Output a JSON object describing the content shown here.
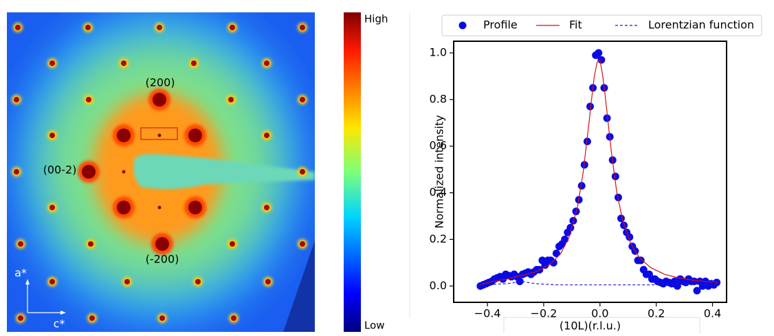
{
  "image": {
    "peak_labels": [
      "(200)",
      "(00-2)",
      "(-200)"
    ],
    "axes": [
      "a*",
      "c*"
    ],
    "colorbar": {
      "high": "High",
      "low": "Low"
    }
  },
  "chart_data": {
    "type": "line",
    "xlabel": "(10L)(r.l.u.)",
    "ylabel": "Normalized intensity",
    "xlim": [
      -0.52,
      0.45
    ],
    "ylim": [
      -0.07,
      1.05
    ],
    "xticks": [
      {
        "value": -0.4,
        "label": "−0.4"
      },
      {
        "value": -0.2,
        "label": "−0.2"
      },
      {
        "value": 0,
        "label": "0.0"
      },
      0.2,
      0.4
    ],
    "yticks": [
      {
        "value": 0,
        "label": "0.0"
      },
      0.2,
      0.4,
      0.6,
      0.8,
      {
        "value": 1,
        "label": "1.0"
      }
    ],
    "legend": "upper center",
    "series": [
      {
        "name": "Profile",
        "type": "scatter",
        "color": "#0a0ae6",
        "x": [
          -0.425,
          -0.415,
          -0.405,
          -0.395,
          -0.385,
          -0.375,
          -0.365,
          -0.355,
          -0.345,
          -0.335,
          -0.325,
          -0.315,
          -0.305,
          -0.295,
          -0.285,
          -0.275,
          -0.265,
          -0.255,
          -0.245,
          -0.235,
          -0.225,
          -0.215,
          -0.205,
          -0.195,
          -0.185,
          -0.175,
          -0.165,
          -0.155,
          -0.145,
          -0.135,
          -0.125,
          -0.115,
          -0.105,
          -0.095,
          -0.085,
          -0.075,
          -0.065,
          -0.055,
          -0.045,
          -0.035,
          -0.025,
          -0.015,
          -0.005,
          0.005,
          0.015,
          0.025,
          0.035,
          0.045,
          0.055,
          0.065,
          0.075,
          0.085,
          0.095,
          0.105,
          0.115,
          0.125,
          0.135,
          0.145,
          0.155,
          0.165,
          0.175,
          0.185,
          0.195,
          0.205,
          0.215,
          0.225,
          0.235,
          0.245,
          0.255,
          0.265,
          0.275,
          0.285,
          0.295,
          0.305,
          0.315,
          0.325,
          0.335,
          0.345,
          0.355,
          0.365,
          0.375,
          0.385,
          0.395,
          0.405,
          0.415
        ],
        "values": [
          0.0,
          0.005,
          0.01,
          0.015,
          0.02,
          0.03,
          0.035,
          0.04,
          0.03,
          0.05,
          0.045,
          0.04,
          0.05,
          0.04,
          0.02,
          0.05,
          0.055,
          0.06,
          0.05,
          0.06,
          0.07,
          0.07,
          0.11,
          0.09,
          0.11,
          0.11,
          0.1,
          0.14,
          0.17,
          0.18,
          0.2,
          0.23,
          0.25,
          0.28,
          0.32,
          0.37,
          0.43,
          0.52,
          0.62,
          0.77,
          0.85,
          0.99,
          1.0,
          0.97,
          0.85,
          0.72,
          0.64,
          0.54,
          0.47,
          0.38,
          0.29,
          0.26,
          0.23,
          0.21,
          0.17,
          0.15,
          0.11,
          0.11,
          0.07,
          0.05,
          0.05,
          0.03,
          0.03,
          0.02,
          0.015,
          0.01,
          0.02,
          0.015,
          0.01,
          0.02,
          0.0,
          0.03,
          0.02,
          0.015,
          0.03,
          0.02,
          0.02,
          -0.02,
          0.02,
          0.0,
          0.02,
          0.0,
          0.01,
          0.005,
          0.015
        ]
      },
      {
        "name": "Fit",
        "type": "line",
        "color": "#d01010",
        "linestyle": "solid",
        "x": [
          -0.43,
          -0.38,
          -0.33,
          -0.28,
          -0.23,
          -0.18,
          -0.14,
          -0.11,
          -0.08,
          -0.06,
          -0.04,
          -0.03,
          -0.02,
          -0.01,
          0.0,
          0.01,
          0.02,
          0.03,
          0.04,
          0.06,
          0.08,
          0.11,
          0.14,
          0.18,
          0.23,
          0.28,
          0.33,
          0.38,
          0.42
        ],
        "values": [
          0.005,
          0.02,
          0.03,
          0.045,
          0.06,
          0.09,
          0.138,
          0.209,
          0.339,
          0.485,
          0.69,
          0.8,
          0.9,
          0.96,
          0.97,
          0.9,
          0.8,
          0.69,
          0.58,
          0.4,
          0.286,
          0.18,
          0.122,
          0.079,
          0.05,
          0.035,
          0.025,
          0.019,
          0.016
        ]
      },
      {
        "name": "Lorentzian function",
        "type": "line",
        "color": "#1a1acc",
        "linestyle": "dashed",
        "x": [
          -0.43,
          -0.33,
          -0.28,
          -0.23,
          -0.15,
          0.0,
          0.2,
          0.3,
          0.42
        ],
        "values": [
          0.005,
          0.01,
          0.02,
          0.01,
          0.005,
          0.005,
          0.005,
          0.01,
          0.005
        ]
      }
    ]
  }
}
